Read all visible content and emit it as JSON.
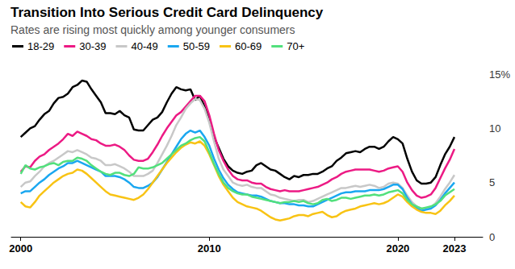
{
  "chart_data": {
    "type": "line",
    "title": "Transition Into Serious Credit Card Delinquency",
    "subtitle": "Rates are rising most quickly among younger consumers",
    "x": [
      2000,
      2000.25,
      2000.5,
      2000.75,
      2001,
      2001.25,
      2001.5,
      2001.75,
      2002,
      2002.25,
      2002.5,
      2002.75,
      2003,
      2003.25,
      2003.5,
      2003.75,
      2004,
      2004.25,
      2004.5,
      2004.75,
      2005,
      2005.25,
      2005.5,
      2005.75,
      2006,
      2006.25,
      2006.5,
      2006.75,
      2007,
      2007.25,
      2007.5,
      2007.75,
      2008,
      2008.25,
      2008.5,
      2008.75,
      2009,
      2009.25,
      2009.5,
      2009.75,
      2010,
      2010.25,
      2010.5,
      2010.75,
      2011,
      2011.25,
      2011.5,
      2011.75,
      2012,
      2012.25,
      2012.5,
      2012.75,
      2013,
      2013.25,
      2013.5,
      2013.75,
      2014,
      2014.25,
      2014.5,
      2014.75,
      2015,
      2015.25,
      2015.5,
      2015.75,
      2016,
      2016.25,
      2016.5,
      2016.75,
      2017,
      2017.25,
      2017.5,
      2017.75,
      2018,
      2018.25,
      2018.5,
      2018.75,
      2019,
      2019.25,
      2019.5,
      2019.75,
      2020,
      2020.25,
      2020.5,
      2020.75,
      2021,
      2021.25,
      2021.5,
      2021.75,
      2022,
      2022.25,
      2022.5,
      2022.75,
      2023
    ],
    "xlim": [
      1999.5,
      2024.5
    ],
    "xticks": [
      2000,
      2010,
      2020,
      2023
    ],
    "ylim": [
      0,
      15
    ],
    "yticks": [
      0,
      5,
      10,
      {
        "value": 15,
        "label": "15%"
      }
    ],
    "grid": false,
    "legend": "top-left",
    "series": [
      {
        "name": "18-29",
        "color": "#000000",
        "values": [
          9.2,
          9.6,
          10.0,
          10.2,
          10.8,
          11.3,
          11.6,
          12.3,
          12.8,
          12.9,
          13.2,
          13.8,
          14.0,
          14.4,
          14.3,
          13.6,
          13.0,
          12.4,
          11.4,
          11.4,
          11.3,
          11.6,
          11.2,
          11.0,
          9.9,
          9.8,
          9.8,
          10.3,
          10.8,
          11.0,
          11.5,
          12.4,
          13.2,
          13.8,
          13.6,
          13.5,
          13.6,
          12.6,
          13.0,
          12.0,
          11.0,
          9.2,
          8.2,
          7.2,
          6.5,
          6.1,
          5.9,
          5.8,
          6.0,
          6.1,
          6.6,
          6.8,
          6.5,
          6.2,
          6.1,
          5.8,
          5.5,
          5.3,
          5.6,
          5.5,
          5.7,
          5.7,
          5.8,
          5.8,
          6.0,
          6.3,
          6.5,
          7.0,
          7.3,
          7.7,
          7.8,
          7.9,
          7.8,
          8.1,
          8.3,
          8.3,
          8.1,
          8.3,
          8.8,
          9.2,
          9.0,
          8.6,
          7.2,
          6.0,
          5.2,
          4.9,
          4.9,
          5.0,
          5.5,
          6.6,
          7.6,
          8.3,
          9.2
        ]
      },
      {
        "name": "30-39",
        "color": "#ec1a84",
        "values": [
          6.0,
          6.5,
          6.4,
          7.0,
          7.4,
          7.6,
          8.0,
          8.3,
          8.6,
          9.0,
          9.5,
          9.3,
          9.7,
          9.5,
          9.3,
          9.0,
          8.9,
          8.6,
          8.4,
          8.4,
          8.5,
          8.3,
          8.0,
          7.5,
          7.1,
          7.0,
          7.0,
          7.2,
          7.8,
          8.5,
          9.3,
          10.0,
          10.6,
          11.2,
          11.5,
          12.0,
          12.5,
          13.0,
          13.0,
          12.5,
          11.2,
          9.5,
          8.0,
          7.0,
          6.2,
          5.6,
          5.3,
          5.2,
          5.2,
          5.0,
          4.9,
          4.9,
          4.6,
          4.4,
          4.3,
          4.2,
          4.3,
          4.2,
          4.2,
          4.2,
          4.3,
          4.4,
          4.5,
          4.6,
          4.8,
          5.0,
          5.3,
          5.5,
          5.8,
          6.0,
          6.1,
          6.2,
          6.2,
          6.2,
          6.2,
          6.1,
          6.0,
          6.1,
          6.3,
          6.4,
          6.5,
          6.0,
          5.0,
          4.3,
          3.8,
          3.6,
          3.7,
          3.9,
          4.5,
          5.4,
          6.3,
          7.1,
          8.1
        ]
      },
      {
        "name": "40-49",
        "color": "#c8c8c8",
        "values": [
          4.6,
          5.0,
          5.1,
          5.6,
          6.0,
          6.5,
          6.8,
          7.0,
          7.3,
          7.6,
          7.9,
          7.8,
          8.0,
          7.8,
          7.6,
          7.3,
          7.2,
          7.0,
          6.6,
          6.6,
          6.7,
          6.5,
          6.3,
          6.0,
          5.6,
          5.6,
          5.6,
          5.8,
          6.1,
          6.8,
          7.6,
          8.4,
          9.3,
          10.3,
          11.0,
          11.8,
          12.3,
          12.7,
          12.6,
          11.8,
          10.5,
          8.8,
          7.2,
          6.2,
          5.6,
          5.0,
          4.8,
          4.7,
          4.8,
          4.6,
          4.5,
          4.5,
          4.2,
          3.9,
          3.8,
          3.6,
          3.5,
          3.4,
          3.3,
          3.4,
          3.4,
          3.2,
          3.3,
          3.5,
          3.7,
          3.9,
          4.1,
          4.3,
          4.5,
          4.5,
          4.6,
          4.7,
          4.6,
          4.7,
          4.8,
          4.7,
          4.5,
          4.6,
          4.9,
          5.0,
          4.9,
          4.5,
          3.8,
          3.2,
          2.8,
          2.6,
          2.6,
          2.7,
          3.1,
          3.7,
          4.4,
          5.0,
          5.7
        ]
      },
      {
        "name": "50-59",
        "color": "#1aa7f0",
        "values": [
          4.0,
          4.2,
          4.2,
          4.6,
          5.0,
          5.3,
          5.7,
          6.0,
          6.3,
          6.5,
          6.8,
          6.8,
          7.0,
          6.8,
          6.6,
          6.4,
          6.2,
          6.0,
          5.6,
          5.6,
          5.6,
          5.5,
          5.3,
          5.0,
          4.6,
          4.5,
          4.5,
          4.7,
          5.0,
          5.5,
          6.2,
          6.9,
          7.6,
          8.3,
          9.0,
          9.5,
          9.8,
          9.6,
          9.8,
          9.2,
          8.4,
          7.2,
          6.2,
          5.4,
          4.8,
          4.4,
          4.1,
          4.0,
          3.9,
          3.8,
          3.8,
          3.7,
          3.5,
          3.3,
          3.2,
          3.1,
          3.1,
          3.0,
          3.0,
          2.9,
          2.9,
          2.8,
          2.8,
          3.0,
          3.2,
          3.4,
          3.6,
          3.8,
          4.0,
          4.1,
          4.1,
          4.2,
          4.2,
          4.2,
          4.3,
          4.3,
          4.3,
          4.4,
          4.6,
          4.8,
          4.8,
          4.4,
          3.6,
          3.0,
          2.6,
          2.4,
          2.5,
          2.6,
          2.9,
          3.4,
          4.0,
          4.5,
          5.0
        ]
      },
      {
        "name": "60-69",
        "color": "#f8c314",
        "values": [
          3.2,
          2.8,
          2.7,
          3.2,
          3.8,
          4.2,
          4.6,
          5.0,
          5.3,
          5.6,
          5.8,
          5.9,
          6.2,
          6.1,
          5.8,
          5.4,
          5.0,
          4.6,
          4.2,
          3.9,
          3.8,
          3.7,
          3.6,
          3.5,
          3.4,
          3.6,
          3.9,
          4.4,
          5.0,
          5.6,
          6.2,
          6.8,
          7.3,
          7.8,
          8.2,
          8.5,
          8.7,
          8.6,
          8.8,
          8.4,
          7.6,
          6.6,
          5.6,
          4.8,
          4.2,
          3.6,
          3.2,
          3.0,
          2.8,
          2.7,
          2.6,
          2.4,
          2.1,
          1.8,
          1.6,
          1.5,
          1.6,
          1.7,
          1.9,
          2.0,
          2.0,
          1.9,
          2.1,
          2.2,
          2.3,
          2.0,
          1.8,
          1.9,
          2.2,
          2.4,
          2.5,
          2.6,
          2.8,
          2.9,
          3.0,
          3.1,
          3.0,
          3.1,
          3.3,
          3.6,
          3.9,
          3.7,
          3.2,
          2.8,
          2.5,
          2.3,
          2.2,
          2.2,
          2.1,
          2.4,
          2.9,
          3.3,
          3.8
        ]
      },
      {
        "name": "70+",
        "color": "#52e07c",
        "values": [
          5.8,
          6.6,
          6.3,
          6.2,
          6.4,
          6.5,
          6.7,
          6.8,
          6.6,
          6.9,
          7.0,
          7.0,
          7.3,
          7.2,
          7.0,
          6.6,
          6.3,
          6.0,
          5.8,
          5.7,
          5.9,
          5.9,
          5.7,
          5.6,
          5.8,
          6.4,
          6.3,
          6.3,
          6.4,
          6.6,
          6.8,
          7.2,
          7.6,
          8.0,
          8.4,
          8.6,
          8.9,
          9.1,
          9.2,
          8.8,
          7.8,
          6.7,
          5.8,
          5.0,
          4.5,
          4.2,
          4.0,
          3.9,
          3.9,
          3.7,
          3.6,
          3.5,
          3.4,
          3.3,
          3.2,
          3.1,
          3.2,
          3.2,
          3.3,
          3.2,
          3.3,
          3.1,
          3.0,
          3.1,
          3.4,
          3.5,
          3.3,
          3.4,
          3.6,
          3.6,
          3.5,
          3.6,
          3.7,
          3.8,
          3.8,
          3.9,
          3.8,
          3.9,
          4.1,
          4.2,
          4.3,
          4.0,
          3.4,
          3.0,
          2.8,
          2.6,
          2.7,
          2.8,
          3.0,
          3.3,
          3.8,
          4.1,
          4.4
        ]
      }
    ]
  }
}
